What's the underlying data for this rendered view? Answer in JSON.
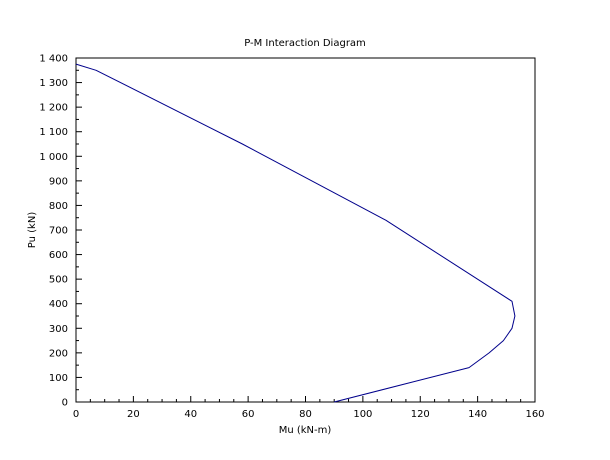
{
  "chart_data": {
    "type": "line",
    "title": "P-M Interaction Diagram",
    "xlabel": "Mu (kN-m)",
    "ylabel": "Pu (kN)",
    "xlim": [
      0,
      160
    ],
    "ylim": [
      0,
      1400
    ],
    "xticks": [
      0,
      20,
      40,
      60,
      80,
      100,
      120,
      140,
      160
    ],
    "yticks": [
      0,
      100,
      200,
      300,
      400,
      500,
      600,
      700,
      800,
      900,
      1000,
      1100,
      1200,
      1300,
      1400
    ],
    "ytick_labels": [
      "0",
      "100",
      "200",
      "300",
      "400",
      "500",
      "600",
      "700",
      "800",
      "900",
      "1 000",
      "1 100",
      "1 200",
      "1 300",
      "1 400"
    ],
    "grid": false,
    "legend": "none",
    "series": [
      {
        "color": "#00008b",
        "x": [
          0,
          7,
          58,
          108,
          152,
          153,
          152,
          149,
          144,
          137,
          90
        ],
        "y": [
          1375,
          1350,
          1050,
          740,
          410,
          350,
          300,
          250,
          200,
          140,
          0
        ]
      }
    ]
  }
}
